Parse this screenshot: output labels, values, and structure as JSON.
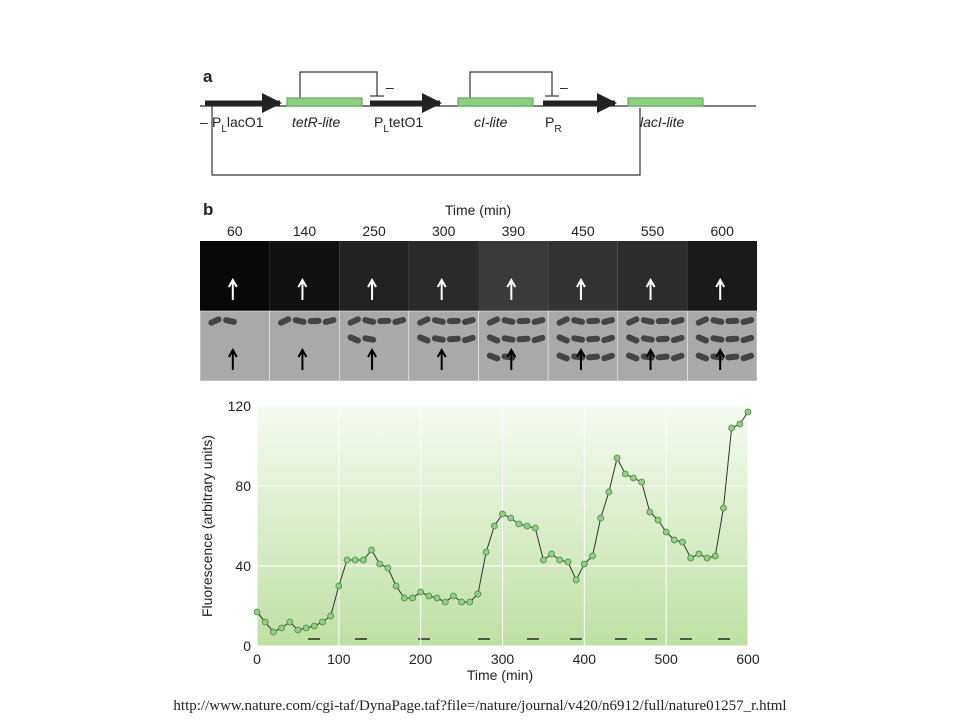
{
  "panel_a": {
    "label": "a",
    "minus": "–",
    "promoters": [
      {
        "main": "P",
        "sub": "L",
        "rest": "lacO1"
      },
      {
        "main": "P",
        "sub": "L",
        "rest": "tetO1"
      },
      {
        "main": "P",
        "sub": "R",
        "rest": ""
      }
    ],
    "genes": [
      "tetR-lite",
      "cI-lite",
      "lacI-lite"
    ],
    "repression": [
      "–",
      "–"
    ]
  },
  "panel_b": {
    "label": "b",
    "time_title": "Time (min)",
    "times": [
      "60",
      "140",
      "250",
      "300",
      "390",
      "450",
      "550",
      "600"
    ]
  },
  "chart_data": {
    "type": "line",
    "xlabel": "Time (min)",
    "ylabel": "Fluorescence (arbitrary units)",
    "color": "#4a8a3a",
    "marker_color": "#8fcf88",
    "x": [
      0,
      10,
      20,
      30,
      40,
      50,
      60,
      70,
      80,
      90,
      100,
      110,
      120,
      130,
      140,
      150,
      160,
      170,
      180,
      190,
      200,
      210,
      220,
      230,
      240,
      250,
      260,
      270,
      280,
      290,
      300,
      310,
      320,
      330,
      340,
      350,
      360,
      370,
      380,
      390,
      400,
      410,
      420,
      430,
      440,
      450,
      460,
      470,
      480,
      490,
      500,
      510,
      520,
      530,
      540,
      550,
      560,
      570,
      580,
      590,
      600
    ],
    "values": [
      17,
      12,
      7,
      9,
      12,
      8,
      9,
      10,
      12,
      15,
      30,
      43,
      43,
      43,
      48,
      41,
      39,
      30,
      24,
      24,
      27,
      25,
      24,
      22,
      25,
      22,
      22,
      26,
      47,
      60,
      66,
      64,
      61,
      60,
      59,
      43,
      46,
      43,
      42,
      33,
      41,
      45,
      64,
      77,
      94,
      86,
      84,
      82,
      67,
      63,
      57,
      53,
      52,
      44,
      46,
      44,
      45,
      69,
      109,
      111,
      117
    ],
    "xlim": [
      0,
      600
    ],
    "ylim": [
      0,
      120
    ],
    "xticks": [
      0,
      100,
      200,
      300,
      400,
      500,
      600
    ],
    "yticks": [
      0,
      40,
      80,
      120
    ],
    "grid": true
  },
  "footer": {
    "url": "http://www.nature.com/cgi-taf/DynaPage.taf?file=/nature/journal/v420/n6912/full/nature01257_r.html"
  }
}
